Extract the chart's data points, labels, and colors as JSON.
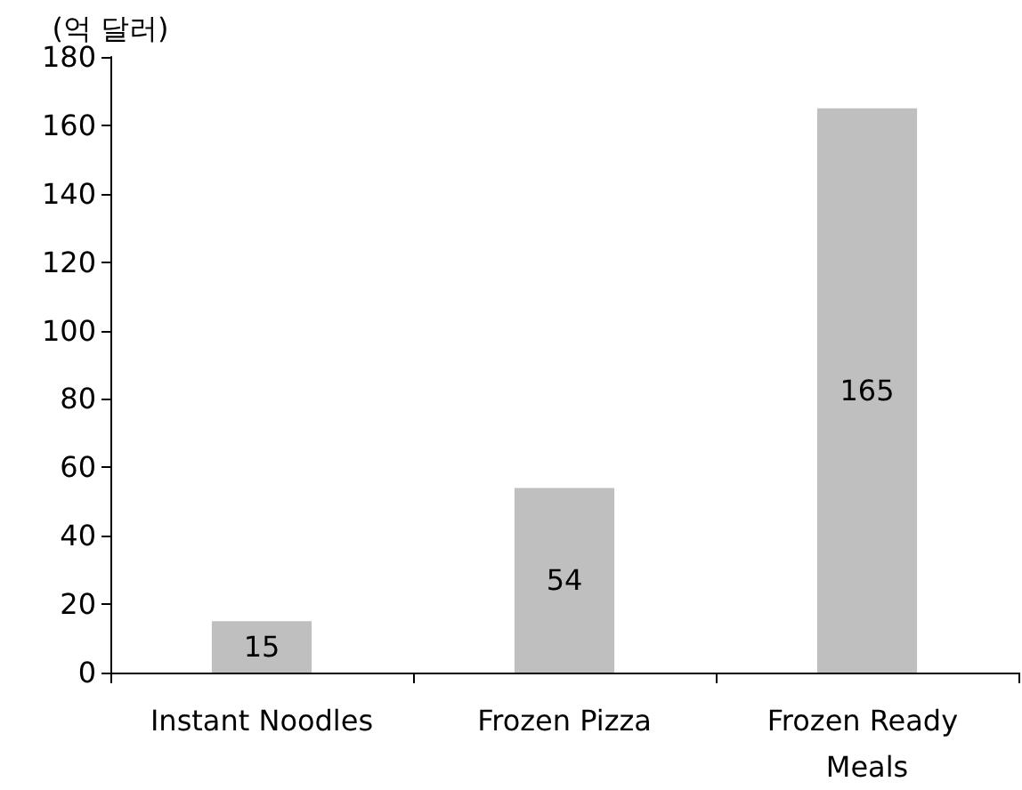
{
  "chart_data": {
    "type": "bar",
    "ylabel": "(억 달러)",
    "categories": [
      "Instant Noodles",
      "Frozen Pizza",
      "Frozen Ready Meals"
    ],
    "values": [
      15,
      54,
      165
    ],
    "color": "#bfbfbf",
    "data_labels": true,
    "ylim": [
      0,
      180
    ],
    "yticks": [
      0,
      20,
      40,
      60,
      80,
      100,
      120,
      140,
      160,
      180
    ],
    "grid": false
  }
}
